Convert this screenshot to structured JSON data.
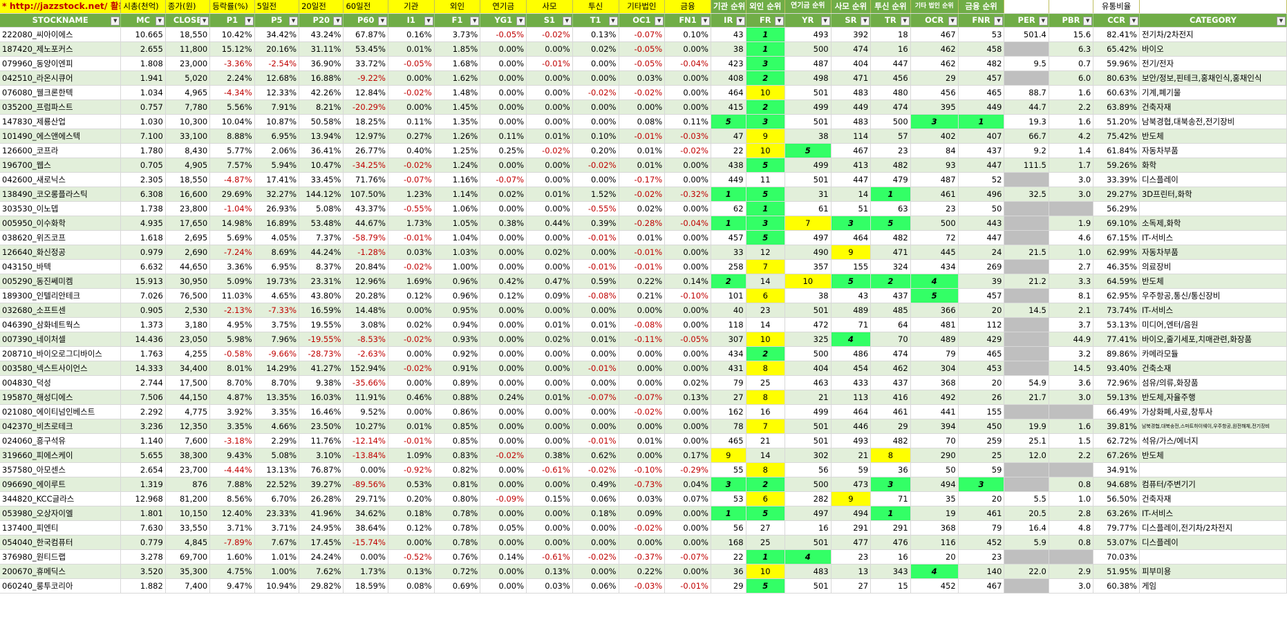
{
  "header_top": [
    "* http://jazzstock.net/ 활용",
    "시총(천억)",
    "종가(원)",
    "등락률(%)",
    "5일전",
    "20일전",
    "60일전",
    "기관",
    "외인",
    "연기금",
    "사모",
    "투신",
    "기타법인",
    "금융",
    "기관 순위",
    "외인 순위",
    "연기금 순위",
    "사모 순위",
    "투신 순위",
    "기타 법인 순위",
    "금융 순위",
    "",
    "",
    "유통비율",
    ""
  ],
  "columns": [
    "STOCKNAME",
    "MC",
    "CLOSE",
    "P1",
    "P5",
    "P20",
    "P60",
    "I1",
    "F1",
    "YG1",
    "S1",
    "T1",
    "OC1",
    "FN1",
    "IR",
    "FR",
    "YR",
    "SR",
    "TR",
    "OCR",
    "FNR",
    "PER",
    "PBR",
    "CCR",
    "CATEGORY"
  ],
  "rows": [
    [
      "222080_씨아이에스",
      "10.665",
      "18,550",
      "10.42%",
      "34.42%",
      "43.24%",
      "67.87%",
      "0.16%",
      "3.73%",
      "-0.05%",
      "-0.02%",
      "0.13%",
      "-0.07%",
      "0.10%",
      "43",
      "1",
      "493",
      "392",
      "18",
      "467",
      "53",
      "501.4",
      "15.6",
      "82.41%",
      "전기차/2차전지"
    ],
    [
      "187420_제노포커스",
      "2.655",
      "11,800",
      "15.12%",
      "20.16%",
      "31.11%",
      "53.45%",
      "0.01%",
      "1.85%",
      "0.00%",
      "0.00%",
      "0.02%",
      "-0.05%",
      "0.00%",
      "38",
      "1",
      "500",
      "474",
      "16",
      "462",
      "458",
      "",
      "6.3",
      "65.42%",
      "바이오"
    ],
    [
      "079960_동양이엔피",
      "1.808",
      "23,000",
      "-3.36%",
      "-2.54%",
      "36.90%",
      "33.72%",
      "-0.05%",
      "1.68%",
      "0.00%",
      "-0.01%",
      "0.00%",
      "-0.05%",
      "-0.04%",
      "423",
      "3",
      "487",
      "404",
      "447",
      "462",
      "482",
      "9.5",
      "0.7",
      "59.96%",
      "전기/전자"
    ],
    [
      "042510_라온시큐어",
      "1.941",
      "5,020",
      "2.24%",
      "12.68%",
      "16.88%",
      "-9.22%",
      "0.00%",
      "1.62%",
      "0.00%",
      "0.00%",
      "0.00%",
      "0.03%",
      "0.00%",
      "408",
      "2",
      "498",
      "471",
      "456",
      "29",
      "457",
      "",
      "6.0",
      "80.63%",
      "보안/정보,핀테크,홍채인식,홍채인식"
    ],
    [
      "076080_웰크론한텍",
      "1.034",
      "4,965",
      "-4.34%",
      "12.33%",
      "42.26%",
      "12.84%",
      "-0.02%",
      "1.48%",
      "0.00%",
      "0.00%",
      "-0.02%",
      "-0.02%",
      "0.00%",
      "464",
      "10",
      "501",
      "483",
      "480",
      "456",
      "465",
      "88.7",
      "1.6",
      "60.63%",
      "기계,폐기물"
    ],
    [
      "035200_프럼파스트",
      "0.757",
      "7,780",
      "5.56%",
      "7.91%",
      "8.21%",
      "-20.29%",
      "0.00%",
      "1.45%",
      "0.00%",
      "0.00%",
      "0.00%",
      "0.00%",
      "0.00%",
      "415",
      "2",
      "499",
      "449",
      "474",
      "395",
      "449",
      "44.7",
      "2.2",
      "63.89%",
      "건축자재"
    ],
    [
      "147830_제룡산업",
      "1.030",
      "10,300",
      "10.04%",
      "10.87%",
      "50.58%",
      "18.25%",
      "0.11%",
      "1.35%",
      "0.00%",
      "0.00%",
      "0.00%",
      "0.08%",
      "0.11%",
      "5",
      "3",
      "501",
      "483",
      "500",
      "3",
      "1",
      "19.3",
      "1.6",
      "51.20%",
      "남북경협,대북송전,전기장비"
    ],
    [
      "101490_에스앤에스텍",
      "7.100",
      "33,100",
      "8.88%",
      "6.95%",
      "13.94%",
      "12.97%",
      "0.27%",
      "1.26%",
      "0.11%",
      "0.01%",
      "0.10%",
      "-0.01%",
      "-0.03%",
      "47",
      "9",
      "38",
      "114",
      "57",
      "402",
      "407",
      "66.7",
      "4.2",
      "75.42%",
      "반도체"
    ],
    [
      "126600_코프라",
      "1.780",
      "8,430",
      "5.77%",
      "2.06%",
      "36.41%",
      "26.77%",
      "0.40%",
      "1.25%",
      "0.25%",
      "-0.02%",
      "0.20%",
      "0.01%",
      "-0.02%",
      "22",
      "10",
      "5",
      "467",
      "23",
      "84",
      "437",
      "9.2",
      "1.4",
      "61.84%",
      "자동차부품"
    ],
    [
      "196700_웹스",
      "0.705",
      "4,905",
      "7.57%",
      "5.94%",
      "10.47%",
      "-34.25%",
      "-0.02%",
      "1.24%",
      "0.00%",
      "0.00%",
      "-0.02%",
      "0.01%",
      "0.00%",
      "438",
      "5",
      "499",
      "413",
      "482",
      "93",
      "447",
      "111.5",
      "1.7",
      "59.26%",
      "화학"
    ],
    [
      "042600_새로닉스",
      "2.305",
      "18,550",
      "-4.87%",
      "17.41%",
      "33.45%",
      "71.76%",
      "-0.07%",
      "1.16%",
      "-0.07%",
      "0.00%",
      "0.00%",
      "-0.17%",
      "0.00%",
      "449",
      "11",
      "501",
      "447",
      "479",
      "487",
      "52",
      "",
      "3.0",
      "33.39%",
      "디스플레이"
    ],
    [
      "138490_코오롱플라스틱",
      "6.308",
      "16,600",
      "29.69%",
      "32.27%",
      "144.12%",
      "107.50%",
      "1.23%",
      "1.14%",
      "0.02%",
      "0.01%",
      "1.52%",
      "-0.02%",
      "-0.32%",
      "1",
      "5",
      "31",
      "14",
      "1",
      "461",
      "496",
      "32.5",
      "3.0",
      "29.27%",
      "3D프린터,화학"
    ],
    [
      "303530_이노뎁",
      "1.738",
      "23,800",
      "-1.04%",
      "26.93%",
      "5.08%",
      "43.37%",
      "-0.55%",
      "1.06%",
      "0.00%",
      "0.00%",
      "-0.55%",
      "0.02%",
      "0.00%",
      "62",
      "1",
      "61",
      "51",
      "63",
      "23",
      "50",
      "",
      "",
      "56.29%",
      ""
    ],
    [
      "005950_이수화학",
      "4.935",
      "17,650",
      "14.98%",
      "16.89%",
      "53.48%",
      "44.67%",
      "1.73%",
      "1.05%",
      "0.38%",
      "0.44%",
      "0.39%",
      "-0.28%",
      "-0.04%",
      "1",
      "3",
      "7",
      "3",
      "5",
      "500",
      "443",
      "",
      "1.9",
      "69.10%",
      "소독제,화학"
    ],
    [
      "038620_위즈코프",
      "1.618",
      "2,695",
      "5.69%",
      "4.05%",
      "7.37%",
      "-58.79%",
      "-0.01%",
      "1.04%",
      "0.00%",
      "0.00%",
      "-0.01%",
      "0.01%",
      "0.00%",
      "457",
      "5",
      "497",
      "464",
      "482",
      "72",
      "447",
      "",
      "4.6",
      "67.15%",
      "IT-서비스"
    ],
    [
      "126640_화신정공",
      "0.979",
      "2,690",
      "-7.24%",
      "8.69%",
      "44.24%",
      "-1.28%",
      "0.03%",
      "1.03%",
      "0.00%",
      "0.02%",
      "0.00%",
      "-0.01%",
      "0.00%",
      "33",
      "12",
      "490",
      "9",
      "471",
      "445",
      "24",
      "21.5",
      "1.0",
      "62.99%",
      "자동차부품"
    ],
    [
      "043150_바텍",
      "6.632",
      "44,650",
      "3.36%",
      "6.95%",
      "8.37%",
      "20.84%",
      "-0.02%",
      "1.00%",
      "0.00%",
      "0.00%",
      "-0.01%",
      "-0.01%",
      "0.00%",
      "258",
      "7",
      "357",
      "155",
      "324",
      "434",
      "269",
      "",
      "2.7",
      "46.35%",
      "의료장비"
    ],
    [
      "005290_동진쎄미켐",
      "15.913",
      "30,950",
      "5.09%",
      "19.73%",
      "23.31%",
      "12.96%",
      "1.69%",
      "0.96%",
      "0.42%",
      "0.47%",
      "0.59%",
      "0.22%",
      "0.14%",
      "2",
      "14",
      "10",
      "5",
      "2",
      "4",
      "39",
      "21.2",
      "3.3",
      "64.59%",
      "반도체"
    ],
    [
      "189300_인텔리안테크",
      "7.026",
      "76,500",
      "11.03%",
      "4.65%",
      "43.80%",
      "20.28%",
      "0.12%",
      "0.96%",
      "0.12%",
      "0.09%",
      "-0.08%",
      "0.21%",
      "-0.10%",
      "101",
      "6",
      "38",
      "43",
      "437",
      "5",
      "457",
      "",
      "8.1",
      "62.95%",
      "우주항공,통신/통신장비"
    ],
    [
      "032680_소프트센",
      "0.905",
      "2,530",
      "-2.13%",
      "-7.33%",
      "16.59%",
      "14.48%",
      "0.00%",
      "0.95%",
      "0.00%",
      "0.00%",
      "0.00%",
      "0.00%",
      "0.00%",
      "40",
      "23",
      "501",
      "489",
      "485",
      "366",
      "20",
      "14.5",
      "2.1",
      "73.74%",
      "IT-서비스"
    ],
    [
      "046390_삼화네트웍스",
      "1.373",
      "3,180",
      "4.95%",
      "3.75%",
      "19.55%",
      "3.08%",
      "0.02%",
      "0.94%",
      "0.00%",
      "0.01%",
      "0.01%",
      "-0.08%",
      "0.00%",
      "118",
      "14",
      "472",
      "71",
      "64",
      "481",
      "112",
      "",
      "3.7",
      "53.13%",
      "미디어,엔터/음원"
    ],
    [
      "007390_네이처셀",
      "14.436",
      "23,050",
      "5.98%",
      "7.96%",
      "-19.55%",
      "-8.53%",
      "-0.02%",
      "0.93%",
      "0.00%",
      "0.02%",
      "0.01%",
      "-0.11%",
      "-0.05%",
      "307",
      "10",
      "325",
      "4",
      "70",
      "489",
      "429",
      "",
      "44.9",
      "77.41%",
      "바이오,줄기세포,치매관련,화장품"
    ],
    [
      "208710_바이오로그디바이스",
      "1.763",
      "4,255",
      "-0.58%",
      "-9.66%",
      "-28.73%",
      "-2.63%",
      "0.00%",
      "0.92%",
      "0.00%",
      "0.00%",
      "0.00%",
      "0.00%",
      "0.00%",
      "434",
      "2",
      "500",
      "486",
      "474",
      "79",
      "465",
      "",
      "3.2",
      "89.86%",
      "카메라모듈"
    ],
    [
      "003580_넥스트사이언스",
      "14.333",
      "34,400",
      "8.01%",
      "14.29%",
      "41.27%",
      "152.94%",
      "-0.02%",
      "0.91%",
      "0.00%",
      "0.00%",
      "-0.01%",
      "0.00%",
      "0.00%",
      "431",
      "8",
      "404",
      "454",
      "462",
      "304",
      "453",
      "",
      "14.5",
      "93.40%",
      "건축소재"
    ],
    [
      "004830_덕성",
      "2.744",
      "17,500",
      "8.70%",
      "8.70%",
      "9.38%",
      "-35.66%",
      "0.00%",
      "0.89%",
      "0.00%",
      "0.00%",
      "0.00%",
      "0.00%",
      "0.02%",
      "79",
      "25",
      "463",
      "433",
      "437",
      "368",
      "20",
      "54.9",
      "3.6",
      "72.96%",
      "섬유/의류,화장품"
    ],
    [
      "195870_해성디에스",
      "7.506",
      "44,150",
      "4.87%",
      "13.35%",
      "16.03%",
      "11.91%",
      "0.46%",
      "0.88%",
      "0.24%",
      "0.01%",
      "-0.07%",
      "-0.07%",
      "0.13%",
      "27",
      "8",
      "21",
      "113",
      "416",
      "492",
      "26",
      "21.7",
      "3.0",
      "59.13%",
      "반도체,자율주행"
    ],
    [
      "021080_에이티넘인베스트",
      "2.292",
      "4,775",
      "3.92%",
      "3.35%",
      "16.46%",
      "9.52%",
      "0.00%",
      "0.86%",
      "0.00%",
      "0.00%",
      "0.00%",
      "-0.02%",
      "0.00%",
      "162",
      "16",
      "499",
      "464",
      "461",
      "441",
      "155",
      "",
      "",
      "66.49%",
      "가상화폐,사료,창투사"
    ],
    [
      "042370_비츠로테크",
      "3.236",
      "12,350",
      "3.35%",
      "4.66%",
      "23.50%",
      "10.27%",
      "0.01%",
      "0.85%",
      "0.00%",
      "0.00%",
      "0.00%",
      "0.00%",
      "0.00%",
      "78",
      "7",
      "501",
      "446",
      "29",
      "394",
      "450",
      "19.9",
      "1.6",
      "39.81%",
      "남북경협,대북송전,스마트하이웨이,우주항공,원전해체,전기장비"
    ],
    [
      "024060_흥구석유",
      "1.140",
      "7,600",
      "-3.18%",
      "2.29%",
      "11.76%",
      "-12.14%",
      "-0.01%",
      "0.85%",
      "0.00%",
      "0.00%",
      "-0.01%",
      "0.01%",
      "0.00%",
      "465",
      "21",
      "501",
      "493",
      "482",
      "70",
      "259",
      "25.1",
      "1.5",
      "62.72%",
      "석유/가스/에너지"
    ],
    [
      "319660_피에스케이",
      "5.655",
      "38,300",
      "9.43%",
      "5.08%",
      "3.10%",
      "-13.84%",
      "1.09%",
      "0.83%",
      "-0.02%",
      "0.38%",
      "0.62%",
      "0.00%",
      "0.17%",
      "9",
      "14",
      "302",
      "21",
      "8",
      "290",
      "25",
      "12.0",
      "2.2",
      "67.26%",
      "반도체"
    ],
    [
      "357580_아모센스",
      "2.654",
      "23,700",
      "-4.44%",
      "13.13%",
      "76.87%",
      "0.00%",
      "-0.92%",
      "0.82%",
      "0.00%",
      "-0.61%",
      "-0.02%",
      "-0.10%",
      "-0.29%",
      "55",
      "8",
      "56",
      "59",
      "36",
      "50",
      "59",
      "",
      "",
      "34.91%",
      ""
    ],
    [
      "096690_에이루트",
      "1.319",
      "876",
      "7.88%",
      "22.52%",
      "39.27%",
      "-89.56%",
      "0.53%",
      "0.81%",
      "0.00%",
      "0.00%",
      "0.49%",
      "-0.73%",
      "0.04%",
      "3",
      "2",
      "500",
      "473",
      "3",
      "494",
      "3",
      "",
      "0.8",
      "94.68%",
      "컴퓨터/주변기기"
    ],
    [
      "344820_KCC글라스",
      "12.968",
      "81,200",
      "8.56%",
      "6.70%",
      "26.28%",
      "29.71%",
      "0.20%",
      "0.80%",
      "-0.09%",
      "0.15%",
      "0.06%",
      "0.03%",
      "0.07%",
      "53",
      "6",
      "282",
      "9",
      "71",
      "35",
      "20",
      "5.5",
      "1.0",
      "56.50%",
      "건축자재"
    ],
    [
      "053980_오상자이엘",
      "1.801",
      "10,150",
      "12.40%",
      "23.33%",
      "41.96%",
      "34.62%",
      "0.18%",
      "0.78%",
      "0.00%",
      "0.00%",
      "0.18%",
      "0.09%",
      "0.00%",
      "1",
      "5",
      "497",
      "494",
      "1",
      "19",
      "461",
      "20.5",
      "2.8",
      "63.26%",
      "IT-서비스"
    ],
    [
      "137400_피엔티",
      "7.630",
      "33,550",
      "3.71%",
      "3.71%",
      "24.95%",
      "38.64%",
      "0.12%",
      "0.78%",
      "0.05%",
      "0.00%",
      "0.00%",
      "-0.02%",
      "0.00%",
      "56",
      "27",
      "16",
      "291",
      "291",
      "368",
      "79",
      "16.4",
      "4.8",
      "79.77%",
      "디스플레이,전기차/2차전지"
    ],
    [
      "054040_한국컴퓨터",
      "0.779",
      "4,845",
      "-7.89%",
      "7.67%",
      "17.45%",
      "-15.74%",
      "0.00%",
      "0.78%",
      "0.00%",
      "0.00%",
      "0.00%",
      "0.00%",
      "0.00%",
      "168",
      "25",
      "501",
      "477",
      "476",
      "116",
      "452",
      "5.9",
      "0.8",
      "53.07%",
      "디스플레이"
    ],
    [
      "376980_원티드랩",
      "3.278",
      "69,700",
      "1.60%",
      "1.01%",
      "24.24%",
      "0.00%",
      "-0.52%",
      "0.76%",
      "0.14%",
      "-0.61%",
      "-0.02%",
      "-0.37%",
      "-0.07%",
      "22",
      "1",
      "4",
      "23",
      "16",
      "20",
      "23",
      "",
      "",
      "70.03%",
      ""
    ],
    [
      "200670_휴메딕스",
      "3.520",
      "35,300",
      "4.75%",
      "1.00%",
      "7.62%",
      "1.73%",
      "0.13%",
      "0.72%",
      "0.00%",
      "0.13%",
      "0.00%",
      "0.22%",
      "0.00%",
      "36",
      "10",
      "483",
      "13",
      "343",
      "4",
      "140",
      "22.0",
      "2.9",
      "51.95%",
      "피부미용"
    ],
    [
      "060240_룽투코리아",
      "1.882",
      "7,400",
      "9.47%",
      "10.94%",
      "29.82%",
      "18.59%",
      "0.08%",
      "0.69%",
      "0.00%",
      "0.03%",
      "0.06%",
      "-0.03%",
      "-0.01%",
      "29",
      "5",
      "501",
      "27",
      "15",
      "452",
      "467",
      "",
      "3.0",
      "60.38%",
      "게임"
    ]
  ],
  "highlights": {
    "0": {
      "15": "g"
    },
    "1": {
      "15": "g"
    },
    "2": {
      "15": "g"
    },
    "3": {
      "15": "g"
    },
    "4": {
      "15": "y"
    },
    "5": {
      "15": "g"
    },
    "6": {
      "14": "g",
      "15": "g",
      "19": "g",
      "20": "g"
    },
    "7": {
      "15": "y"
    },
    "8": {
      "15": "y",
      "16": "g"
    },
    "9": {
      "15": "g"
    },
    "11": {
      "14": "g",
      "15": "g",
      "18": "g"
    },
    "12": {
      "15": "g"
    },
    "13": {
      "14": "g",
      "15": "g",
      "16": "y",
      "17": "g",
      "18": "g"
    },
    "14": {
      "15": "g"
    },
    "15": {
      "17": "y"
    },
    "16": {
      "15": "y"
    },
    "17": {
      "14": "g",
      "16": "y",
      "17": "g",
      "18": "g",
      "19": "g"
    },
    "18": {
      "15": "y",
      "19": "g"
    },
    "21": {
      "15": "y",
      "17": "g"
    },
    "22": {
      "15": "g"
    },
    "23": {
      "15": "y"
    },
    "25": {
      "15": "y"
    },
    "27": {
      "15": "y"
    },
    "29": {
      "14": "y",
      "18": "y"
    },
    "30": {
      "15": "y"
    },
    "31": {
      "14": "g",
      "15": "g",
      "18": "g",
      "20": "g"
    },
    "32": {
      "15": "y",
      "17": "y"
    },
    "33": {
      "14": "g",
      "15": "g",
      "18": "g"
    },
    "36": {
      "15": "g",
      "16": "g"
    },
    "37": {
      "15": "y",
      "19": "g"
    },
    "38": {
      "15": "g"
    }
  }
}
